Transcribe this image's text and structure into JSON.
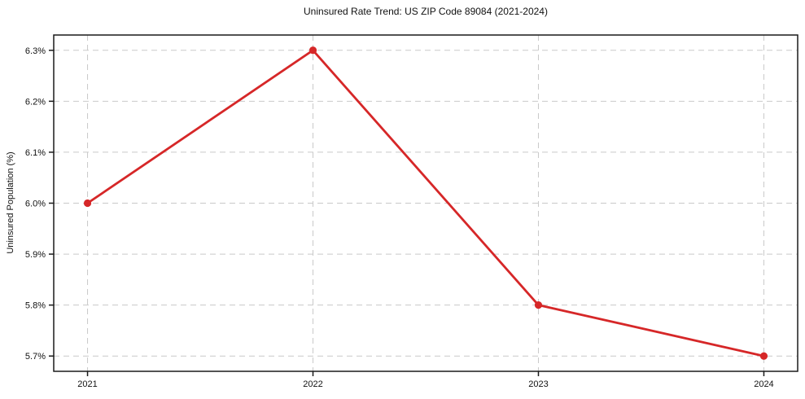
{
  "chart_data": {
    "type": "line",
    "title": "Uninsured Rate Trend: US ZIP Code 89084 (2021-2024)",
    "xlabel": "",
    "ylabel": "Uninsured Population (%)",
    "x": [
      2021,
      2022,
      2023,
      2024
    ],
    "values": [
      6.0,
      6.3,
      5.8,
      5.7
    ],
    "xlim": [
      2020.85,
      2024.15
    ],
    "ylim": [
      5.67,
      6.33
    ],
    "xticks": {
      "values": [
        2021,
        2022,
        2023,
        2024
      ],
      "labels": [
        "2021",
        "2022",
        "2023",
        "2024"
      ]
    },
    "yticks": {
      "values": [
        5.7,
        5.8,
        5.9,
        6.0,
        6.1,
        6.2,
        6.3
      ],
      "labels": [
        "5.7%",
        "5.8%",
        "5.9%",
        "6.0%",
        "6.1%",
        "6.2%",
        "6.3%"
      ]
    },
    "grid": true,
    "grid_style": "dashed",
    "legend": false,
    "marker": "circle",
    "line_color": "#d62728",
    "marker_color": "#d62728",
    "grid_color": "#c9c9c9",
    "spine_color": "#1a1a1a",
    "text_color": "#111111"
  }
}
